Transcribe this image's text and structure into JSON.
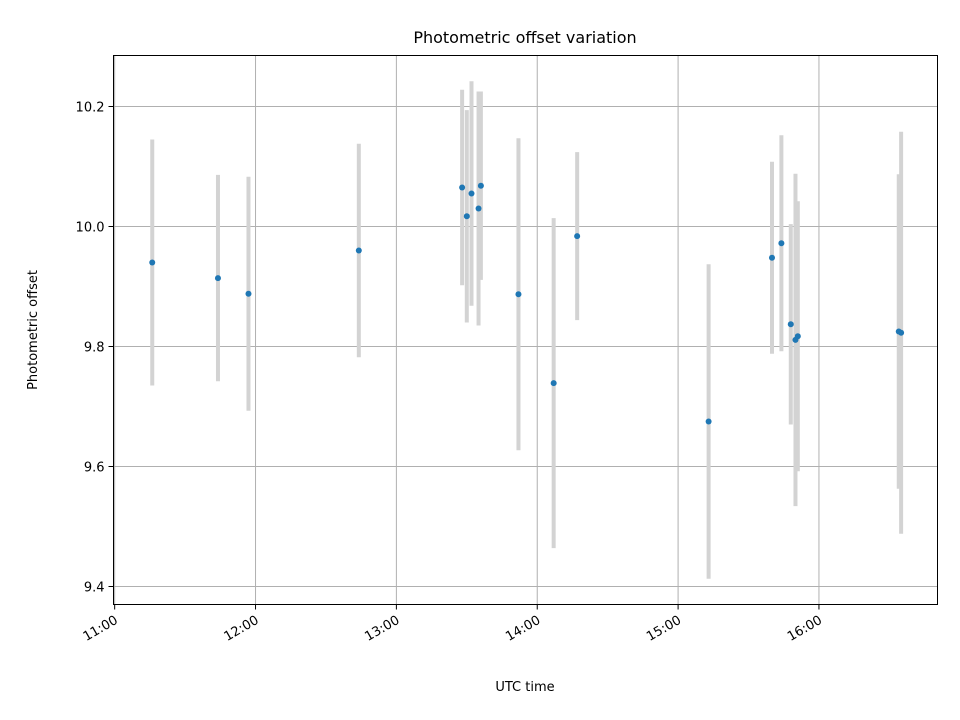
{
  "chart_data": {
    "type": "scatter",
    "title": "Photometric offset variation",
    "xlabel": "UTC time",
    "ylabel": "Photometric offset",
    "x_tick_labels": [
      "11:00",
      "12:00",
      "13:00",
      "14:00",
      "15:00",
      "16:00"
    ],
    "x_tick_minutes": [
      660,
      720,
      780,
      840,
      900,
      960
    ],
    "xlim_minutes": [
      659.5,
      1010.5
    ],
    "y_tick_labels": [
      "9.4",
      "9.6",
      "9.8",
      "10.0",
      "10.2"
    ],
    "y_ticks": [
      9.4,
      9.6,
      9.8,
      10.0,
      10.2
    ],
    "ylim": [
      9.37,
      10.285
    ],
    "grid": true,
    "point_color": "#1f77b4",
    "errorbar_color": "#d3d3d3",
    "points": [
      {
        "time": "11:16",
        "y": 9.94,
        "err": 0.205
      },
      {
        "time": "11:44",
        "y": 9.914,
        "err": 0.172
      },
      {
        "time": "11:57",
        "y": 9.888,
        "err": 0.195
      },
      {
        "time": "12:44",
        "y": 9.96,
        "err": 0.178
      },
      {
        "time": "13:28",
        "y": 10.065,
        "err": 0.163
      },
      {
        "time": "13:30",
        "y": 10.017,
        "err": 0.177
      },
      {
        "time": "13:32",
        "y": 10.055,
        "err": 0.187
      },
      {
        "time": "13:35",
        "y": 10.03,
        "err": 0.195
      },
      {
        "time": "13:36",
        "y": 10.068,
        "err": 0.157
      },
      {
        "time": "13:52",
        "y": 9.887,
        "err": 0.26
      },
      {
        "time": "14:07",
        "y": 9.739,
        "err": 0.275
      },
      {
        "time": "14:17",
        "y": 9.984,
        "err": 0.14
      },
      {
        "time": "15:13",
        "y": 9.675,
        "err": 0.262
      },
      {
        "time": "15:40",
        "y": 9.948,
        "err": 0.16
      },
      {
        "time": "15:44",
        "y": 9.972,
        "err": 0.18
      },
      {
        "time": "15:48",
        "y": 9.837,
        "err": 0.167
      },
      {
        "time": "15:50",
        "y": 9.811,
        "err": 0.277
      },
      {
        "time": "15:51",
        "y": 9.817,
        "err": 0.225
      },
      {
        "time": "16:34",
        "y": 9.825,
        "err": 0.262
      },
      {
        "time": "16:35",
        "y": 9.823,
        "err": 0.335
      }
    ]
  }
}
